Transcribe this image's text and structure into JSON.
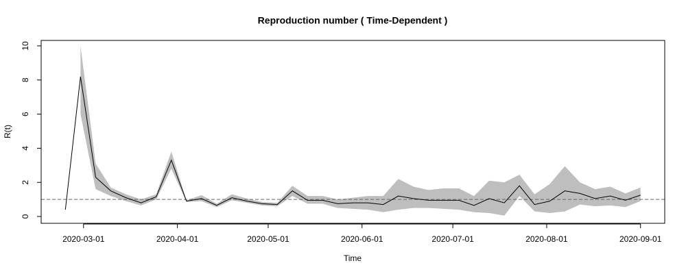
{
  "chart_data": {
    "type": "line",
    "title": "Reproduction number ( Time-Dependent )",
    "x_label": "Time",
    "y_label": "R(t)",
    "x": [
      "2020-02-24",
      "2020-02-29",
      "2020-03-05",
      "2020-03-10",
      "2020-03-15",
      "2020-03-20",
      "2020-03-25",
      "2020-03-30",
      "2020-04-04",
      "2020-04-09",
      "2020-04-14",
      "2020-04-19",
      "2020-04-24",
      "2020-04-29",
      "2020-05-04",
      "2020-05-09",
      "2020-05-14",
      "2020-05-19",
      "2020-05-24",
      "2020-05-29",
      "2020-06-03",
      "2020-06-08",
      "2020-06-13",
      "2020-06-18",
      "2020-06-23",
      "2020-06-28",
      "2020-07-03",
      "2020-07-08",
      "2020-07-13",
      "2020-07-18",
      "2020-07-23",
      "2020-07-28",
      "2020-08-02",
      "2020-08-07",
      "2020-08-12",
      "2020-08-17",
      "2020-08-22",
      "2020-08-27",
      "2020-09-01"
    ],
    "values": [
      0.4,
      8.2,
      2.3,
      1.5,
      1.1,
      0.8,
      1.15,
      3.3,
      0.9,
      1.05,
      0.65,
      1.1,
      0.9,
      0.75,
      0.7,
      1.5,
      0.95,
      0.95,
      0.75,
      0.8,
      0.8,
      0.7,
      1.2,
      1.05,
      0.95,
      0.95,
      0.95,
      0.65,
      1.05,
      0.8,
      1.8,
      0.7,
      0.9,
      1.5,
      1.35,
      1.05,
      1.2,
      0.95,
      1.25
    ],
    "lower": [
      null,
      6.0,
      1.6,
      1.2,
      0.9,
      0.65,
      1.0,
      2.8,
      0.85,
      0.9,
      0.55,
      0.95,
      0.8,
      0.65,
      0.6,
      1.2,
      0.75,
      0.75,
      0.5,
      0.45,
      0.4,
      0.25,
      0.4,
      0.5,
      0.5,
      0.45,
      0.4,
      0.25,
      0.2,
      0.05,
      1.2,
      0.3,
      0.2,
      0.3,
      0.7,
      0.6,
      0.65,
      0.55,
      0.9
    ],
    "upper": [
      null,
      10.0,
      3.1,
      1.7,
      1.3,
      1.0,
      1.3,
      3.8,
      0.95,
      1.25,
      0.75,
      1.3,
      1.05,
      0.85,
      0.8,
      1.8,
      1.2,
      1.2,
      1.0,
      1.1,
      1.2,
      1.2,
      2.2,
      1.75,
      1.55,
      1.65,
      1.65,
      1.2,
      2.1,
      2.0,
      2.45,
      1.3,
      1.9,
      2.95,
      2.0,
      1.6,
      1.75,
      1.35,
      1.7
    ],
    "line_color": "#000000",
    "band_color": "#bebebe",
    "reference_line": 1,
    "reference_color": "#666666",
    "xlim": [
      "2020-02-16",
      "2020-09-09"
    ],
    "xticks": [
      "2020-03-01",
      "2020-04-01",
      "2020-05-01",
      "2020-06-01",
      "2020-07-01",
      "2020-08-01",
      "2020-09-01"
    ],
    "ylim": [
      -0.4,
      10.32
    ],
    "yticks": [
      0,
      2,
      4,
      6,
      8,
      10
    ]
  }
}
